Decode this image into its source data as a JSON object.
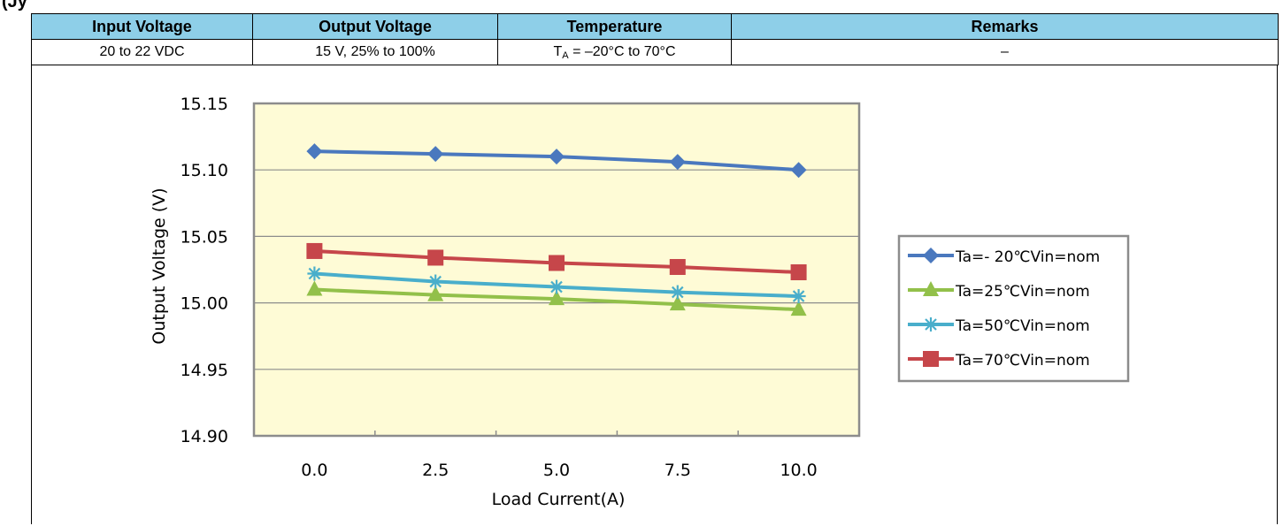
{
  "table": {
    "headers": [
      "Input Voltage",
      "Output Voltage",
      "Temperature",
      "Remarks"
    ],
    "row": {
      "input_voltage": "20 to 22 VDC",
      "output_voltage": "15 V, 25% to 100%",
      "temperature_prefix": "T",
      "temperature_sub": "A",
      "temperature_suffix": " = –20°C to 70°C",
      "remarks": "–"
    },
    "header_color": "#8ecfe8"
  },
  "chart_data": {
    "type": "line",
    "title": "",
    "xlabel": "Load Current(A)",
    "ylabel": "Output Voltage (V)",
    "x": [
      0.0,
      2.5,
      5.0,
      7.5,
      10.0
    ],
    "x_tick_labels": [
      "0.0",
      "2.5",
      "5.0",
      "7.5",
      "10.0"
    ],
    "y_tick_labels": [
      "15.15",
      "15.10",
      "15.05",
      "15.00",
      "14.95",
      "14.90"
    ],
    "ylim": [
      14.9,
      15.15
    ],
    "y_ticks": [
      15.15,
      15.1,
      15.05,
      15.0,
      14.95,
      14.9
    ],
    "grid": "horizontal",
    "plot_background": "#fefbd6",
    "legend_position": "right",
    "series": [
      {
        "name": "Ta=- 20℃Vin=nom",
        "values": [
          15.114,
          15.112,
          15.11,
          15.106,
          15.1
        ],
        "color": "#4a78be",
        "marker": "diamond"
      },
      {
        "name": "Ta=25℃Vin=nom",
        "values": [
          15.01,
          15.006,
          15.003,
          14.999,
          14.995
        ],
        "color": "#92c04a",
        "marker": "triangle"
      },
      {
        "name": "Ta=50℃Vin=nom",
        "values": [
          15.022,
          15.016,
          15.012,
          15.008,
          15.005
        ],
        "color": "#49aecb",
        "marker": "star"
      },
      {
        "name": "Ta=70℃Vin=nom",
        "values": [
          15.039,
          15.034,
          15.03,
          15.027,
          15.023
        ],
        "color": "#c6464a",
        "marker": "square"
      }
    ]
  }
}
